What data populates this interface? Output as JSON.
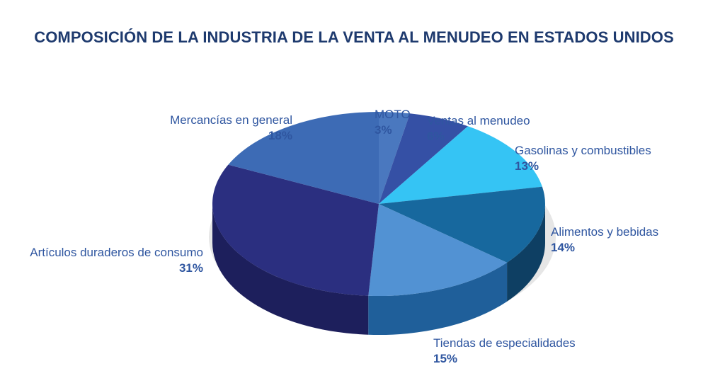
{
  "chart_data": {
    "type": "pie",
    "title": "COMPOSICIÓN DE LA INDUSTRIA DE LA VENTA AL MENUDEO EN ESTADOS UNIDOS",
    "slices": [
      {
        "label": "MOTO",
        "value": 3,
        "value_label": "3%",
        "color": "#4a78bf",
        "side_color": "#2b4f8c"
      },
      {
        "label": "Ventas al menudeo",
        "value": 6,
        "value_label": "6%",
        "color": "#3550a5",
        "side_color": "#223478"
      },
      {
        "label": "Gasolinas y combustibles",
        "value": 13,
        "value_label": "13%",
        "color": "#35c4f4",
        "side_color": "#1f8db5"
      },
      {
        "label": "Alimentos y bebidas",
        "value": 14,
        "value_label": "14%",
        "color": "#17689e",
        "side_color": "#0e3f63"
      },
      {
        "label": "Tiendas de especialidades",
        "value": 15,
        "value_label": "15%",
        "color": "#5292d3",
        "side_color": "#1f5f9a"
      },
      {
        "label": "Artículos duraderos de consumo",
        "value": 31,
        "value_label": "31%",
        "color": "#2b2f80",
        "side_color": "#1d1f5c"
      },
      {
        "label": "Mercancías en general",
        "value": 18,
        "value_label": "18%",
        "color": "#3d6bb5",
        "side_color": "#2a4d8a"
      }
    ]
  }
}
